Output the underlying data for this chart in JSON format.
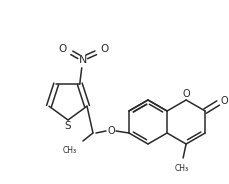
{
  "bg_color": "#ffffff",
  "line_color": "#2a2a2a",
  "line_width": 1.1,
  "figsize": [
    2.29,
    1.84
  ],
  "dpi": 100,
  "xlim": [
    0,
    229
  ],
  "ylim": [
    0,
    184
  ]
}
